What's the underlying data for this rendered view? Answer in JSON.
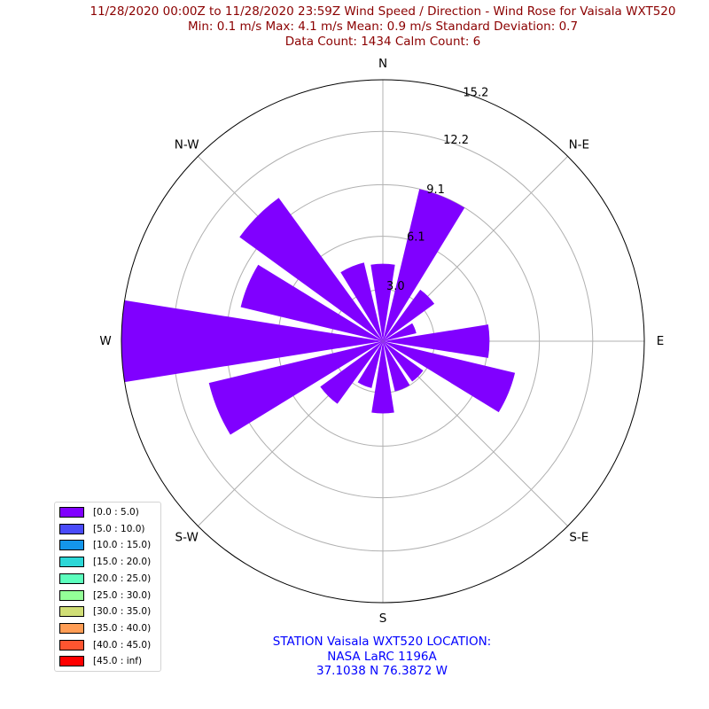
{
  "title_lines": [
    "11/28/2020 00:00Z to 11/28/2020 23:59Z Wind Speed / Direction - Wind Rose for Vaisala WXT520",
    "Min: 0.1 m/s   Max: 4.1 m/s   Mean: 0.9 m/s  Standard Deviation: 0.7",
    "Data Count: 1434  Calm Count:  6"
  ],
  "station_lines": [
    "STATION Vaisala WXT520 LOCATION:",
    "NASA LaRC 1196A",
    "37.1038 N 76.3872 W"
  ],
  "colors": {
    "title": "#8b0000",
    "station": "#0000ff",
    "grid": "#b0b0b0",
    "bar": "#8000ff"
  },
  "chart_data": {
    "type": "wind-rose",
    "direction_labels": [
      "N",
      "N-E",
      "E",
      "S-E",
      "S",
      "S-W",
      "W",
      "N-W"
    ],
    "radial_ticks": [
      3.0,
      6.1,
      9.1,
      12.2,
      15.2
    ],
    "radial_max": 15.2,
    "sector_count": 16,
    "sectors": [
      {
        "direction": "N",
        "value": 4.5
      },
      {
        "direction": "NNE",
        "value": 9.1
      },
      {
        "direction": "NE",
        "value": 3.7
      },
      {
        "direction": "ENE",
        "value": 2.0
      },
      {
        "direction": "E",
        "value": 6.2
      },
      {
        "direction": "ESE",
        "value": 7.9
      },
      {
        "direction": "SE",
        "value": 2.9
      },
      {
        "direction": "SSE",
        "value": 3.0
      },
      {
        "direction": "S",
        "value": 4.2
      },
      {
        "direction": "SSW",
        "value": 2.8
      },
      {
        "direction": "SW",
        "value": 4.5
      },
      {
        "direction": "WSW",
        "value": 10.4
      },
      {
        "direction": "W",
        "value": 15.2
      },
      {
        "direction": "WNW",
        "value": 8.5
      },
      {
        "direction": "NW",
        "value": 10.3
      },
      {
        "direction": "NNW",
        "value": 4.7
      }
    ],
    "legend": [
      {
        "label": "[0.0 : 5.0)",
        "color": "#8000ff"
      },
      {
        "label": "[5.0 : 10.0)",
        "color": "#4a4bf9"
      },
      {
        "label": "[10.0 : 15.0)",
        "color": "#1496ea"
      },
      {
        "label": "[15.0 : 20.0)",
        "color": "#2cd7d7"
      },
      {
        "label": "[20.0 : 25.0)",
        "color": "#5cffbd"
      },
      {
        "label": "[25.0 : 30.0)",
        "color": "#94ff98"
      },
      {
        "label": "[30.0 : 35.0)",
        "color": "#d0de76"
      },
      {
        "label": "[35.0 : 40.0)",
        "color": "#ff9d55"
      },
      {
        "label": "[40.0 : 45.0)",
        "color": "#ff5530"
      },
      {
        "label": "[45.0 : inf)",
        "color": "#ff0000"
      }
    ]
  }
}
